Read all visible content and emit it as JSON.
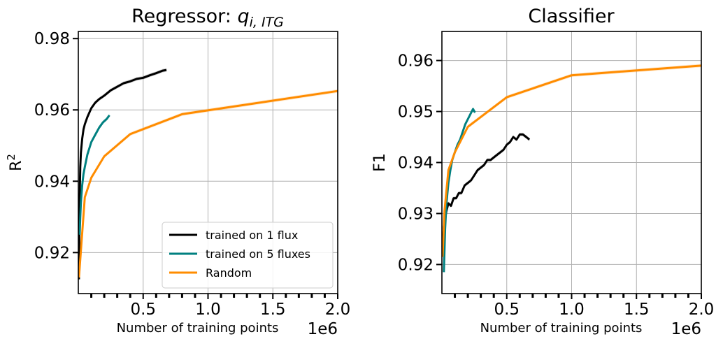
{
  "chart_data": [
    {
      "type": "line",
      "title": "Regressor: ",
      "title_math": "q",
      "title_math_sub": "i, ITG",
      "xlabel": "Number of training points",
      "x_offset_label": "1e6",
      "ylabel": "R",
      "ylabel_sup": "2",
      "xlim": [
        0,
        2000000
      ],
      "ylim": [
        0.9085,
        0.982
      ],
      "xticks": [
        500000,
        1000000,
        1500000,
        2000000
      ],
      "xtick_labels": [
        "0.5",
        "1.0",
        "1.5",
        "2.0"
      ],
      "yticks": [
        0.92,
        0.94,
        0.96,
        0.98
      ],
      "ytick_labels": [
        "0.92",
        "0.94",
        "0.96",
        "0.98"
      ],
      "grid": true,
      "legend": "lower-right",
      "legend_entries": [
        "trained on 1 flux",
        "trained on 5 fluxes",
        "Random"
      ],
      "series": [
        {
          "name": "trained on 1 flux",
          "color": "#000000",
          "x": [
            5000,
            10000,
            15000,
            20000,
            30000,
            40000,
            50000,
            70000,
            100000,
            130000,
            160000,
            200000,
            250000,
            300000,
            350000,
            400000,
            450000,
            500000,
            550000,
            600000,
            650000,
            680000
          ],
          "y": [
            0.9125,
            0.935,
            0.944,
            0.948,
            0.952,
            0.9545,
            0.956,
            0.958,
            0.9605,
            0.962,
            0.963,
            0.964,
            0.9655,
            0.9665,
            0.9675,
            0.968,
            0.9687,
            0.969,
            0.9697,
            0.9703,
            0.971,
            0.9712
          ]
        },
        {
          "name": "trained on 5 fluxes",
          "color": "#008080",
          "x": [
            10000,
            15000,
            20000,
            30000,
            40000,
            50000,
            70000,
            100000,
            130000,
            160000,
            190000,
            220000,
            240000
          ],
          "y": [
            0.925,
            0.93,
            0.934,
            0.939,
            0.942,
            0.944,
            0.9475,
            0.951,
            0.953,
            0.955,
            0.9565,
            0.9575,
            0.9585
          ]
        },
        {
          "name": "Random",
          "color": "#ff8c00",
          "x": [
            5000,
            50000,
            100000,
            200000,
            400000,
            800000,
            2000000
          ],
          "y": [
            0.913,
            0.9355,
            0.941,
            0.947,
            0.9532,
            0.9588,
            0.9653
          ]
        }
      ]
    },
    {
      "type": "line",
      "title": "Classifier",
      "xlabel": "Number of training points",
      "x_offset_label": "1e6",
      "ylabel": "F1",
      "xlim": [
        0,
        2000000
      ],
      "ylim": [
        0.9143,
        0.9657
      ],
      "xticks": [
        500000,
        1000000,
        1500000,
        2000000
      ],
      "xtick_labels": [
        "0.5",
        "1.0",
        "1.5",
        "2.0"
      ],
      "yticks": [
        0.92,
        0.93,
        0.94,
        0.95,
        0.96
      ],
      "ytick_labels": [
        "0.92",
        "0.93",
        "0.94",
        "0.95",
        "0.96"
      ],
      "grid": true,
      "series": [
        {
          "name": "",
          "color": "#000000",
          "x": [
            5000,
            15000,
            25000,
            35000,
            50000,
            70000,
            90000,
            110000,
            130000,
            150000,
            175000,
            200000,
            225000,
            250000,
            275000,
            300000,
            325000,
            350000,
            375000,
            400000,
            425000,
            450000,
            475000,
            500000,
            525000,
            550000,
            575000,
            600000,
            625000,
            650000,
            675000
          ],
          "y": [
            0.9235,
            0.9275,
            0.929,
            0.9305,
            0.932,
            0.9315,
            0.933,
            0.933,
            0.934,
            0.934,
            0.9355,
            0.936,
            0.9365,
            0.9375,
            0.9385,
            0.939,
            0.9395,
            0.9405,
            0.9405,
            0.941,
            0.9415,
            0.942,
            0.9425,
            0.9435,
            0.944,
            0.945,
            0.9445,
            0.9455,
            0.9455,
            0.945,
            0.9445
          ]
        },
        {
          "name": "",
          "color": "#008080",
          "x": [
            15000,
            25000,
            35000,
            50000,
            65000,
            80000,
            100000,
            120000,
            140000,
            160000,
            180000,
            200000,
            220000,
            240000,
            255000
          ],
          "y": [
            0.9185,
            0.927,
            0.932,
            0.936,
            0.9385,
            0.9405,
            0.942,
            0.9435,
            0.9445,
            0.946,
            0.9475,
            0.9485,
            0.9495,
            0.9505,
            0.9498
          ]
        },
        {
          "name": "",
          "color": "#ff8c00",
          "x": [
            5000,
            20000,
            50000,
            100000,
            200000,
            500000,
            1000000,
            2000000
          ],
          "y": [
            0.9215,
            0.9305,
            0.9385,
            0.942,
            0.947,
            0.9528,
            0.9571,
            0.959
          ]
        }
      ]
    }
  ]
}
